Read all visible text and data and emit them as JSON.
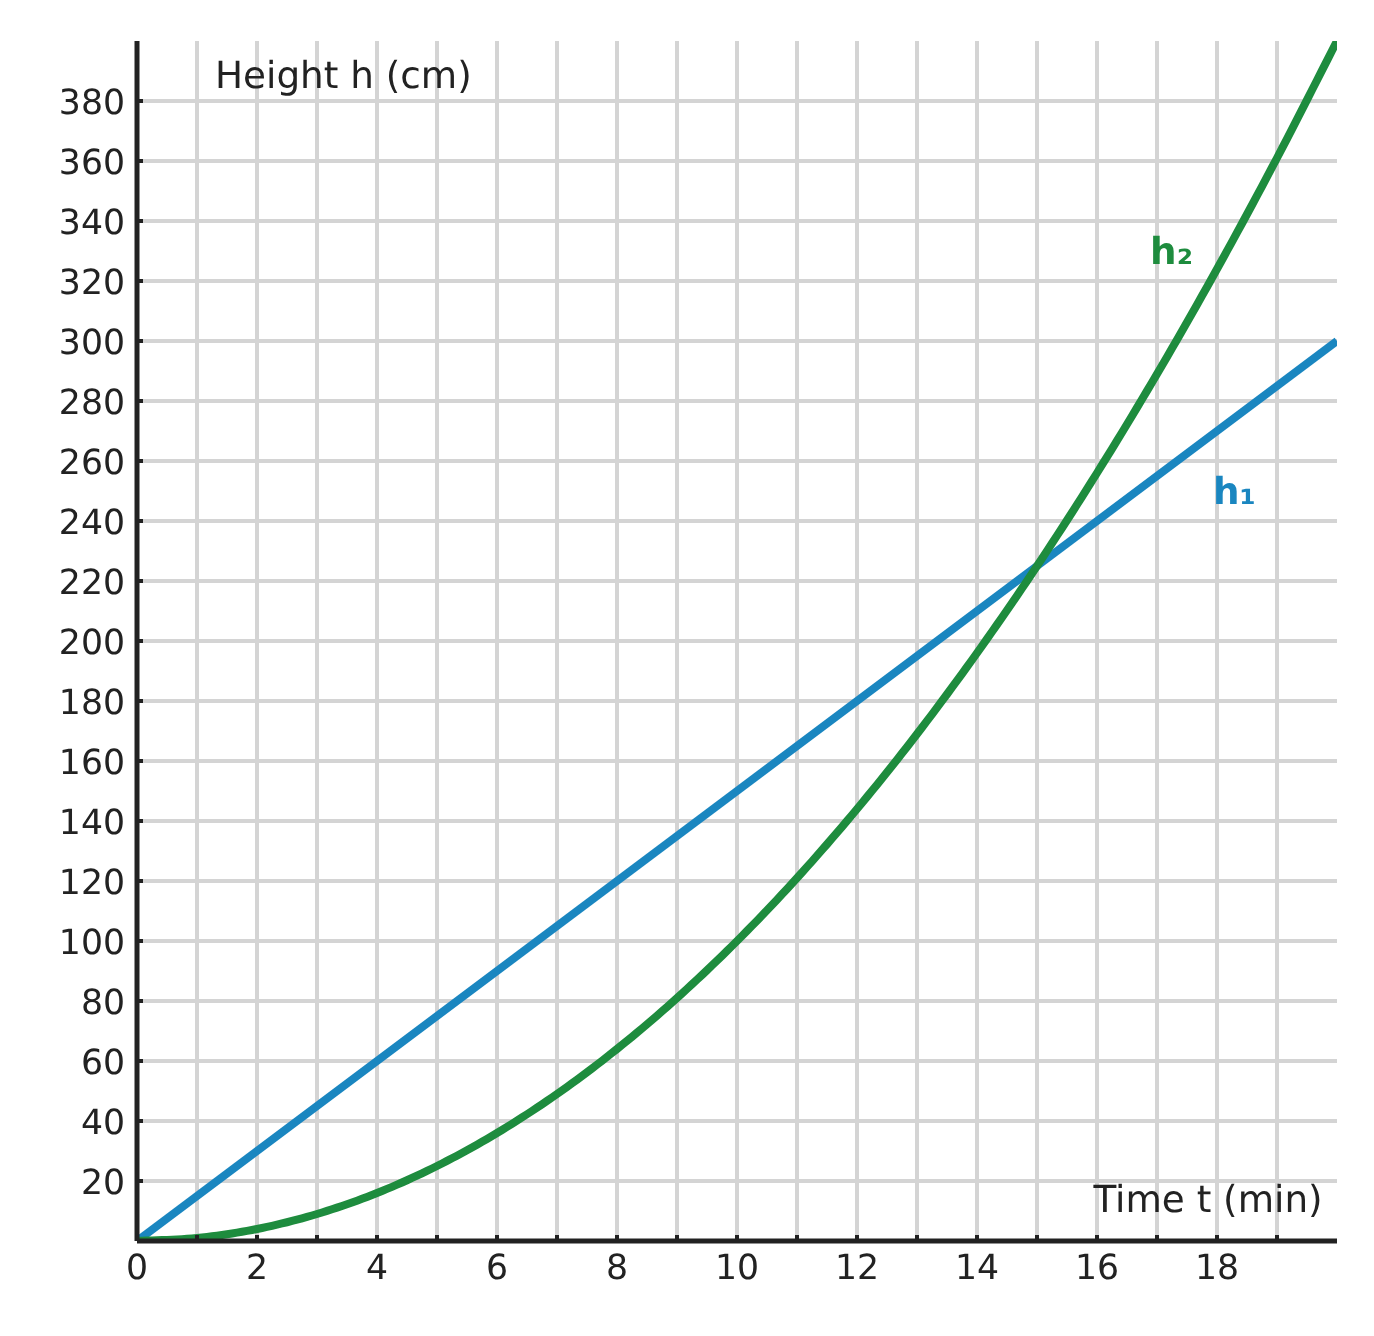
{
  "chart_data": {
    "type": "line",
    "xlabel": "Time t (min)",
    "ylabel": "Height h (cm)",
    "xlim": [
      0,
      20
    ],
    "ylim": [
      0,
      400
    ],
    "xticks": [
      {
        "value": 0,
        "label": "0"
      },
      {
        "value": 1,
        "label": null
      },
      2,
      {
        "value": 3,
        "label": null
      },
      4,
      {
        "value": 5,
        "label": null
      },
      6,
      {
        "value": 7,
        "label": null
      },
      8,
      {
        "value": 9,
        "label": null
      },
      10,
      {
        "value": 11,
        "label": null
      },
      12,
      {
        "value": 13,
        "label": null
      },
      14,
      {
        "value": 15,
        "label": null
      },
      16,
      {
        "value": 17,
        "label": null
      },
      18,
      {
        "value": 19,
        "label": null
      }
    ],
    "yticks": [
      20,
      40,
      60,
      80,
      100,
      120,
      140,
      160,
      180,
      200,
      220,
      240,
      260,
      280,
      300,
      320,
      340,
      360,
      380
    ],
    "grid": true,
    "legend": false,
    "marker": "none",
    "line_style": "solid",
    "series": [
      {
        "name": "h₁",
        "color": "#1a86c0",
        "x": [
          0,
          20
        ],
        "values": [
          0,
          300
        ]
      },
      {
        "name": "h₂",
        "color": "#1e8c3e",
        "x": [
          0,
          1,
          2,
          3,
          4,
          5,
          6,
          7,
          8,
          9,
          10,
          11,
          12,
          13,
          14,
          15,
          16,
          17,
          18,
          19,
          20
        ],
        "values": [
          0,
          1,
          4,
          9,
          16,
          25,
          36,
          49,
          64,
          81,
          100,
          121,
          144,
          169,
          196,
          225,
          256,
          289,
          324,
          361,
          400
        ]
      }
    ]
  }
}
